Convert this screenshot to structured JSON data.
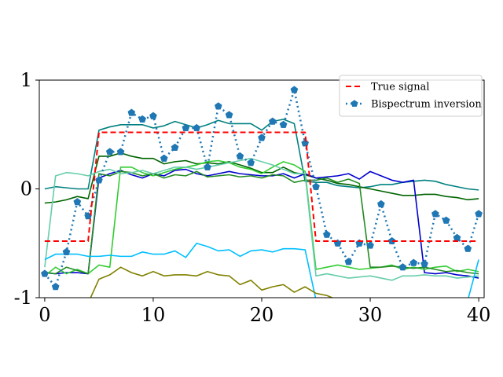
{
  "chart_data": {
    "type": "line",
    "title": "",
    "xlabel": "",
    "ylabel": "",
    "xlim": [
      -0.5,
      40.5
    ],
    "ylim": [
      -1,
      1
    ],
    "x_ticks": [
      0,
      10,
      20,
      30,
      40
    ],
    "y_ticks": [
      -1,
      0,
      1
    ],
    "x_tick_labels": [
      "0",
      "10",
      "20",
      "30",
      "40"
    ],
    "y_tick_labels": [
      "-1",
      "0",
      "1"
    ],
    "grid": false,
    "legend": "top-right",
    "series": [
      {
        "color": "#ff0000",
        "style": "dashed",
        "marker": "none",
        "width": 2,
        "in_legend": true,
        "name": "True signal",
        "values": [
          -0.48,
          -0.48,
          -0.48,
          -0.48,
          -0.48,
          0.52,
          0.52,
          0.52,
          0.52,
          0.52,
          0.52,
          0.52,
          0.52,
          0.52,
          0.52,
          0.52,
          0.52,
          0.52,
          0.52,
          0.52,
          0.52,
          0.52,
          0.52,
          0.52,
          0.52,
          -0.48,
          -0.48,
          -0.48,
          -0.48,
          -0.48,
          -0.48,
          -0.48,
          -0.48,
          -0.48,
          -0.48,
          -0.48,
          -0.48,
          -0.48,
          -0.48,
          -0.48,
          -0.48
        ]
      },
      {
        "color": "#1f77b4",
        "style": "dotted",
        "marker": "pentagon",
        "width": 2.5,
        "in_legend": true,
        "name": "Bispectrum inversion",
        "values": [
          -0.78,
          -0.9,
          -0.58,
          -0.12,
          -0.25,
          0.08,
          0.34,
          0.34,
          0.7,
          0.64,
          0.67,
          0.28,
          0.38,
          0.56,
          0.56,
          0.2,
          0.76,
          0.68,
          0.3,
          0.24,
          0.47,
          0.62,
          0.59,
          0.91,
          0.42,
          0.02,
          -0.42,
          -0.5,
          -0.67,
          -0.5,
          -0.52,
          -0.14,
          -0.48,
          -0.72,
          -0.68,
          -0.69,
          -0.23,
          -0.29,
          -0.45,
          -0.55,
          -0.23
        ]
      },
      {
        "color": "#008080",
        "style": "solid",
        "marker": "none",
        "width": 1.6,
        "in_legend": false,
        "values": [
          0,
          0.02,
          0.01,
          0,
          0,
          0.54,
          0.57,
          0.59,
          0.59,
          0.59,
          0.56,
          0.58,
          0.62,
          0.59,
          0.56,
          0.59,
          0.63,
          0.6,
          0.6,
          0.6,
          0.54,
          0.62,
          0.64,
          0.6,
          0.07,
          0.06,
          0.06,
          0.03,
          0.02,
          0.01,
          0.02,
          0.04,
          0.04,
          0.06,
          0.07,
          0.08,
          0.07,
          0.04,
          0.02,
          0,
          -0.01
        ]
      },
      {
        "color": "#006400",
        "style": "solid",
        "marker": "none",
        "width": 1.6,
        "in_legend": false,
        "values": [
          -0.13,
          -0.12,
          -0.1,
          -0.07,
          -0.09,
          0.3,
          0.3,
          0.33,
          0.3,
          0.28,
          0.28,
          0.23,
          0.25,
          0.26,
          0.23,
          0.24,
          0.23,
          0.25,
          0.22,
          0.19,
          0.15,
          0.15,
          0.2,
          0.15,
          0.13,
          0.1,
          0.08,
          0.05,
          0.04,
          0.02,
          0,
          -0.02,
          -0.04,
          -0.06,
          -0.06,
          -0.05,
          -0.05,
          -0.07,
          -0.08,
          -0.1,
          -0.09
        ]
      },
      {
        "color": "#0000cd",
        "style": "solid",
        "marker": "none",
        "width": 1.6,
        "in_legend": false,
        "values": [
          -0.77,
          -0.78,
          -0.77,
          -0.77,
          -0.78,
          0.1,
          0.14,
          0.17,
          0.13,
          0.1,
          0.14,
          0.12,
          0.17,
          0.18,
          0.14,
          0.12,
          0.14,
          0.16,
          0.14,
          0.13,
          0.12,
          0.12,
          0.14,
          0.1,
          0.14,
          0.1,
          0.11,
          0.12,
          0.14,
          0.09,
          0.16,
          0.12,
          0.08,
          0.06,
          0.08,
          -0.77,
          -0.78,
          -0.77,
          -0.79,
          -0.8,
          -0.82
        ]
      },
      {
        "color": "#32cd32",
        "style": "solid",
        "marker": "none",
        "width": 1.6,
        "in_legend": false,
        "values": [
          -0.8,
          -0.72,
          -0.78,
          -0.74,
          -0.78,
          -0.7,
          -0.72,
          0.2,
          0.2,
          0.15,
          0.12,
          0.15,
          0.18,
          0.2,
          0.22,
          0.25,
          0.26,
          0.24,
          0.2,
          0.18,
          0.14,
          0.2,
          0.25,
          0.22,
          0.16,
          -0.74,
          -0.72,
          -0.7,
          -0.72,
          -0.74,
          -0.73,
          -0.72,
          -0.7,
          -0.74,
          -0.72,
          -0.74,
          -0.72,
          -0.71,
          -0.76,
          -0.74,
          -0.76
        ]
      },
      {
        "color": "#228b22",
        "style": "solid",
        "marker": "none",
        "width": 1.6,
        "in_legend": false,
        "values": [
          -0.77,
          -0.78,
          -0.72,
          -0.75,
          -0.78,
          0.14,
          0.12,
          0.16,
          0.15,
          0.12,
          0.14,
          0.1,
          0.13,
          0.12,
          0.16,
          0.11,
          0.12,
          0.13,
          0.11,
          0.12,
          0.1,
          0.13,
          0.12,
          0.06,
          0.08,
          0.08,
          0.1,
          0.06,
          0.09,
          0.05,
          -0.72,
          -0.72,
          -0.71,
          -0.72,
          -0.73,
          -0.72,
          -0.74,
          -0.76,
          -0.75,
          -0.77,
          -0.78
        ]
      },
      {
        "color": "#66cdaa",
        "style": "solid",
        "marker": "none",
        "width": 1.6,
        "in_legend": false,
        "values": [
          -0.72,
          0.12,
          0.15,
          0.14,
          0.12,
          0.16,
          0.18,
          0.14,
          0.15,
          0.17,
          0.14,
          0.17,
          0.2,
          0.2,
          0.18,
          0.2,
          0.22,
          0.24,
          0.26,
          0.28,
          0.25,
          0.22,
          0.18,
          0.14,
          0.14,
          -0.8,
          -0.78,
          -0.8,
          -0.82,
          -0.81,
          -0.8,
          -0.82,
          -0.84,
          -0.8,
          -0.8,
          -0.79,
          -0.8,
          -0.8,
          -0.82,
          -0.81,
          -0.8
        ]
      },
      {
        "color": "#00bfff",
        "style": "solid",
        "marker": "none",
        "width": 1.6,
        "in_legend": false,
        "values": [
          -0.65,
          -0.6,
          -0.6,
          -0.6,
          -0.62,
          -0.62,
          -0.61,
          -0.62,
          -0.62,
          -0.58,
          -0.6,
          -0.6,
          -0.57,
          -0.63,
          -0.5,
          -0.53,
          -0.57,
          -0.56,
          -0.62,
          -0.57,
          -0.56,
          -0.58,
          -0.55,
          -0.55,
          -0.56,
          -1.02,
          -1.02,
          -1.02,
          -1.02,
          -1.02,
          -1.02,
          -1.02,
          -1.02,
          -1.02,
          -1.02,
          -1.02,
          -1.02,
          -1.02,
          -1.02,
          -1.02,
          -0.65
        ]
      },
      {
        "color": "#808000",
        "style": "solid",
        "marker": "none",
        "width": 1.6,
        "in_legend": false,
        "values": [
          -1.05,
          -1.05,
          -1.05,
          -1.05,
          -1.05,
          -0.83,
          -0.79,
          -0.72,
          -0.77,
          -0.8,
          -0.76,
          -0.8,
          -0.79,
          -0.79,
          -0.8,
          -0.76,
          -0.79,
          -0.8,
          -0.88,
          -0.84,
          -0.93,
          -0.9,
          -0.88,
          -0.95,
          -0.9,
          -0.96,
          -0.98,
          -1.02,
          -1.05,
          -1.05,
          -1.05,
          -1.05,
          -1.05,
          -1.05,
          -1.05,
          -1.05,
          -1.05,
          -1.05,
          -1.05,
          -1.05,
          -1.05
        ]
      }
    ]
  }
}
